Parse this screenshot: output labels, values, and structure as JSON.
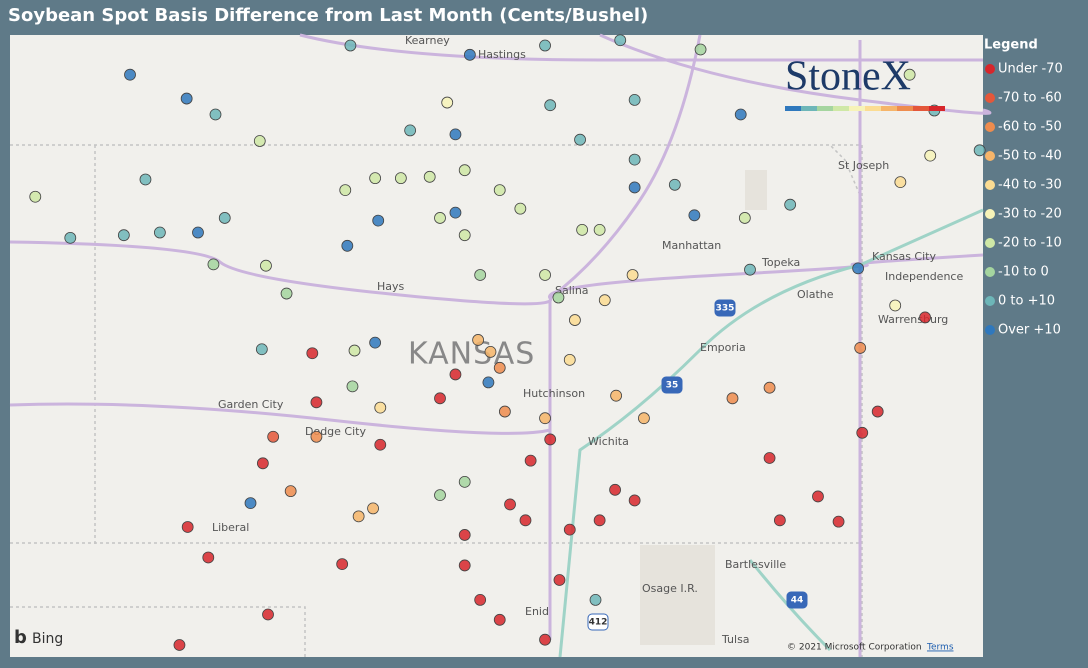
{
  "title": "Soybean Spot Basis Difference from Last Month (Cents/Bushel)",
  "logo": "StoneX",
  "legend": {
    "title": "Legend",
    "items": [
      {
        "label": "Under -70",
        "color": "#d7262b"
      },
      {
        "label": "-70 to -60",
        "color": "#e4573a"
      },
      {
        "label": "-60 to -50",
        "color": "#ee8c4e"
      },
      {
        "label": "-50 to -40",
        "color": "#f6b56a"
      },
      {
        "label": "-40 to -30",
        "color": "#fbdc93"
      },
      {
        "label": "-30 to -20",
        "color": "#f7f3b8"
      },
      {
        "label": "-20 to -10",
        "color": "#cfe8a6"
      },
      {
        "label": "-10 to 0",
        "color": "#a5d59f"
      },
      {
        "label": "0 to +10",
        "color": "#6db6b8"
      },
      {
        "label": "Over +10",
        "color": "#2f78bd"
      }
    ]
  },
  "map": {
    "provider": "Bing",
    "attribution": "© 2021 Microsoft Corporation",
    "terms": "Terms",
    "places": [
      "Kearney",
      "Hastings",
      "St Joseph",
      "Manhattan",
      "Topeka",
      "Kansas City",
      "Independence",
      "Hays",
      "Salina",
      "Olathe",
      "Warrensburg",
      "KANSAS",
      "Emporia",
      "Hutchinson",
      "Garden City",
      "Dodge City",
      "Wichita",
      "Liberal",
      "Bartlesville",
      "Osage I.R.",
      "Enid",
      "Tulsa"
    ],
    "highways": [
      "335",
      "35",
      "44",
      "412"
    ]
  },
  "points": [
    {
      "lon": -101.71,
      "lat": 40.53,
      "class": 9
    },
    {
      "lon": -101.16,
      "lat": 40.35,
      "class": 9
    },
    {
      "lon": -100.88,
      "lat": 40.23,
      "class": 8
    },
    {
      "lon": -100.45,
      "lat": 40.03,
      "class": 6
    },
    {
      "lon": -101.56,
      "lat": 39.74,
      "class": 8
    },
    {
      "lon": -102.63,
      "lat": 39.61,
      "class": 6
    },
    {
      "lon": -102.29,
      "lat": 39.3,
      "class": 8
    },
    {
      "lon": -101.77,
      "lat": 39.32,
      "class": 8
    },
    {
      "lon": -101.42,
      "lat": 39.34,
      "class": 8
    },
    {
      "lon": -101.05,
      "lat": 39.34,
      "class": 9
    },
    {
      "lon": -100.79,
      "lat": 39.45,
      "class": 8
    },
    {
      "lon": -100.9,
      "lat": 39.1,
      "class": 7
    },
    {
      "lon": -100.39,
      "lat": 39.09,
      "class": 6
    },
    {
      "lon": -100.19,
      "lat": 38.88,
      "class": 7
    },
    {
      "lon": -100.43,
      "lat": 38.46,
      "class": 8
    },
    {
      "lon": -99.33,
      "lat": 38.51,
      "class": 9
    },
    {
      "lon": -99.53,
      "lat": 38.45,
      "class": 6
    },
    {
      "lon": -99.55,
      "lat": 38.18,
      "class": 7
    },
    {
      "lon": -99.94,
      "lat": 38.43,
      "class": 0
    },
    {
      "lon": -99.9,
      "lat": 38.06,
      "class": 0
    },
    {
      "lon": -99.28,
      "lat": 38.02,
      "class": 4
    },
    {
      "lon": -100.32,
      "lat": 37.8,
      "class": 1
    },
    {
      "lon": -99.9,
      "lat": 37.8,
      "class": 2
    },
    {
      "lon": -100.42,
      "lat": 37.6,
      "class": 0
    },
    {
      "lon": -100.15,
      "lat": 37.39,
      "class": 2
    },
    {
      "lon": -100.54,
      "lat": 37.3,
      "class": 9
    },
    {
      "lon": -101.15,
      "lat": 37.12,
      "class": 0
    },
    {
      "lon": -100.95,
      "lat": 36.89,
      "class": 0
    },
    {
      "lon": -101.23,
      "lat": 36.23,
      "class": 0
    },
    {
      "lon": -100.37,
      "lat": 36.46,
      "class": 0
    },
    {
      "lon": -99.65,
      "lat": 36.84,
      "class": 0
    },
    {
      "lon": -99.49,
      "lat": 37.2,
      "class": 3
    },
    {
      "lon": -99.35,
      "lat": 37.26,
      "class": 3
    },
    {
      "lon": -99.28,
      "lat": 37.74,
      "class": 0
    },
    {
      "lon": -98.7,
      "lat": 38.09,
      "class": 0
    },
    {
      "lon": -98.55,
      "lat": 38.27,
      "class": 0
    },
    {
      "lon": -98.33,
      "lat": 38.53,
      "class": 3
    },
    {
      "lon": -98.21,
      "lat": 38.44,
      "class": 3
    },
    {
      "lon": -98.23,
      "lat": 38.21,
      "class": 9
    },
    {
      "lon": -98.12,
      "lat": 38.32,
      "class": 2
    },
    {
      "lon": -98.07,
      "lat": 37.99,
      "class": 2
    },
    {
      "lon": -97.68,
      "lat": 37.94,
      "class": 3
    },
    {
      "lon": -97.44,
      "lat": 38.38,
      "class": 4
    },
    {
      "lon": -97.39,
      "lat": 38.68,
      "class": 4
    },
    {
      "lon": -97.1,
      "lat": 38.83,
      "class": 4
    },
    {
      "lon": -96.83,
      "lat": 39.02,
      "class": 4
    },
    {
      "lon": -97.55,
      "lat": 38.85,
      "class": 7
    },
    {
      "lon": -97.68,
      "lat": 39.02,
      "class": 6
    },
    {
      "lon": -98.31,
      "lat": 39.02,
      "class": 7
    },
    {
      "lon": -98.46,
      "lat": 39.32,
      "class": 6
    },
    {
      "lon": -98.7,
      "lat": 39.45,
      "class": 6
    },
    {
      "lon": -98.55,
      "lat": 39.49,
      "class": 9
    },
    {
      "lon": -99.3,
      "lat": 39.43,
      "class": 9
    },
    {
      "lon": -99.6,
      "lat": 39.24,
      "class": 9
    },
    {
      "lon": -99.62,
      "lat": 39.66,
      "class": 6
    },
    {
      "lon": -99.33,
      "lat": 39.75,
      "class": 6
    },
    {
      "lon": -99.08,
      "lat": 39.75,
      "class": 6
    },
    {
      "lon": -98.8,
      "lat": 39.76,
      "class": 6
    },
    {
      "lon": -98.46,
      "lat": 39.81,
      "class": 6
    },
    {
      "lon": -98.12,
      "lat": 39.66,
      "class": 6
    },
    {
      "lon": -97.92,
      "lat": 39.52,
      "class": 6
    },
    {
      "lon": -97.32,
      "lat": 39.36,
      "class": 6
    },
    {
      "lon": -97.15,
      "lat": 39.36,
      "class": 6
    },
    {
      "lon": -96.81,
      "lat": 39.68,
      "class": 9
    },
    {
      "lon": -96.42,
      "lat": 39.7,
      "class": 8
    },
    {
      "lon": -96.23,
      "lat": 39.47,
      "class": 9
    },
    {
      "lon": -95.74,
      "lat": 39.45,
      "class": 6
    },
    {
      "lon": -95.69,
      "lat": 39.06,
      "class": 8
    },
    {
      "lon": -95.3,
      "lat": 39.55,
      "class": 8
    },
    {
      "lon": -94.64,
      "lat": 39.07,
      "class": 9
    },
    {
      "lon": -94.28,
      "lat": 38.79,
      "class": 5
    },
    {
      "lon": -93.99,
      "lat": 38.7,
      "class": 0
    },
    {
      "lon": -94.62,
      "lat": 38.47,
      "class": 2
    },
    {
      "lon": -95.5,
      "lat": 38.17,
      "class": 2
    },
    {
      "lon": -95.5,
      "lat": 37.64,
      "class": 0
    },
    {
      "lon": -94.45,
      "lat": 37.99,
      "class": 0
    },
    {
      "lon": -94.6,
      "lat": 37.83,
      "class": 0
    },
    {
      "lon": -95.03,
      "lat": 37.35,
      "class": 0
    },
    {
      "lon": -94.83,
      "lat": 37.16,
      "class": 0
    },
    {
      "lon": -95.4,
      "lat": 37.17,
      "class": 0
    },
    {
      "lon": -97.63,
      "lat": 37.78,
      "class": 0
    },
    {
      "lon": -97.82,
      "lat": 37.62,
      "class": 0
    },
    {
      "lon": -98.02,
      "lat": 37.29,
      "class": 0
    },
    {
      "lon": -97.87,
      "lat": 37.17,
      "class": 0
    },
    {
      "lon": -97.44,
      "lat": 37.1,
      "class": 0
    },
    {
      "lon": -97.15,
      "lat": 37.17,
      "class": 0
    },
    {
      "lon": -97.0,
      "lat": 37.4,
      "class": 0
    },
    {
      "lon": -96.81,
      "lat": 37.32,
      "class": 0
    },
    {
      "lon": -98.46,
      "lat": 37.06,
      "class": 0
    },
    {
      "lon": -98.46,
      "lat": 36.83,
      "class": 0
    },
    {
      "lon": -98.31,
      "lat": 36.57,
      "class": 0
    },
    {
      "lon": -98.12,
      "lat": 36.42,
      "class": 0
    },
    {
      "lon": -97.68,
      "lat": 36.27,
      "class": 0
    },
    {
      "lon": -97.54,
      "lat": 36.72,
      "class": 0
    },
    {
      "lon": -97.19,
      "lat": 36.57,
      "class": 8
    },
    {
      "lon": -98.7,
      "lat": 37.36,
      "class": 7
    },
    {
      "lon": -98.46,
      "lat": 37.46,
      "class": 7
    },
    {
      "lon": -96.99,
      "lat": 38.11,
      "class": 3
    },
    {
      "lon": -96.72,
      "lat": 37.94,
      "class": 3
    },
    {
      "lon": -95.86,
      "lat": 38.09,
      "class": 2
    },
    {
      "lon": -96.95,
      "lat": 40.79,
      "class": 8
    },
    {
      "lon": -96.17,
      "lat": 40.72,
      "class": 7
    },
    {
      "lon": -95.78,
      "lat": 40.23,
      "class": 9
    },
    {
      "lon": -94.14,
      "lat": 40.53,
      "class": 6
    },
    {
      "lon": -93.9,
      "lat": 40.26,
      "class": 8
    },
    {
      "lon": -93.46,
      "lat": 39.96,
      "class": 8
    },
    {
      "lon": -93.94,
      "lat": 39.92,
      "class": 5
    },
    {
      "lon": -94.23,
      "lat": 39.72,
      "class": 4
    },
    {
      "lon": -98.55,
      "lat": 40.08,
      "class": 9
    },
    {
      "lon": -98.99,
      "lat": 40.11,
      "class": 8
    },
    {
      "lon": -98.41,
      "lat": 40.68,
      "class": 9
    },
    {
      "lon": -99.57,
      "lat": 40.75,
      "class": 8
    },
    {
      "lon": -97.68,
      "lat": 40.75,
      "class": 8
    },
    {
      "lon": -97.34,
      "lat": 40.04,
      "class": 8
    },
    {
      "lon": -96.81,
      "lat": 39.89,
      "class": 8
    },
    {
      "lon": -98.63,
      "lat": 40.32,
      "class": 5
    },
    {
      "lon": -97.63,
      "lat": 40.3,
      "class": 8
    },
    {
      "lon": -96.81,
      "lat": 40.34,
      "class": 8
    }
  ]
}
